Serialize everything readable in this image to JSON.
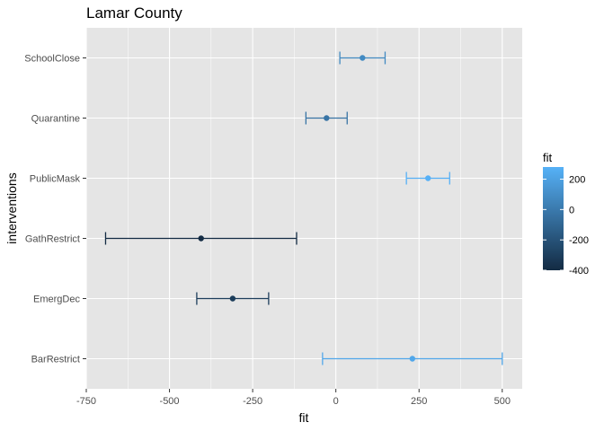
{
  "chart_data": {
    "type": "errorbar",
    "title": "Lamar County",
    "xlabel": "fit",
    "ylabel": "interventions",
    "xlim": [
      -750,
      560
    ],
    "xticks": [
      -750,
      -500,
      -250,
      0,
      250,
      500
    ],
    "xtick_labels": [
      "-750",
      "-500",
      "-250",
      "0",
      "250",
      "500"
    ],
    "categories": [
      "SchoolClose",
      "Quarantine",
      "PublicMask",
      "GathRestrict",
      "EmergDec",
      "BarRestrict"
    ],
    "points": [
      {
        "label": "SchoolClose",
        "fit": 80,
        "lower": 12,
        "upper": 148
      },
      {
        "label": "Quarantine",
        "fit": -28,
        "lower": -90,
        "upper": 34
      },
      {
        "label": "PublicMask",
        "fit": 277,
        "lower": 212,
        "upper": 342
      },
      {
        "label": "GathRestrict",
        "fit": -405,
        "lower": -692,
        "upper": -118
      },
      {
        "label": "EmergDec",
        "fit": -310,
        "lower": -418,
        "upper": -202
      },
      {
        "label": "BarRestrict",
        "fit": 230,
        "lower": -40,
        "upper": 500
      }
    ],
    "legend": {
      "title": "fit",
      "position": "right",
      "range": [
        -400,
        280
      ],
      "ticks": [
        200,
        0,
        -200,
        -400
      ],
      "tick_labels": [
        "200",
        "0",
        "-200",
        "-400"
      ],
      "color_low": "#132b43",
      "color_high": "#56b1f7"
    },
    "grid": true,
    "panel_background": "#e5e5e5",
    "grid_color": "#ffffff"
  }
}
